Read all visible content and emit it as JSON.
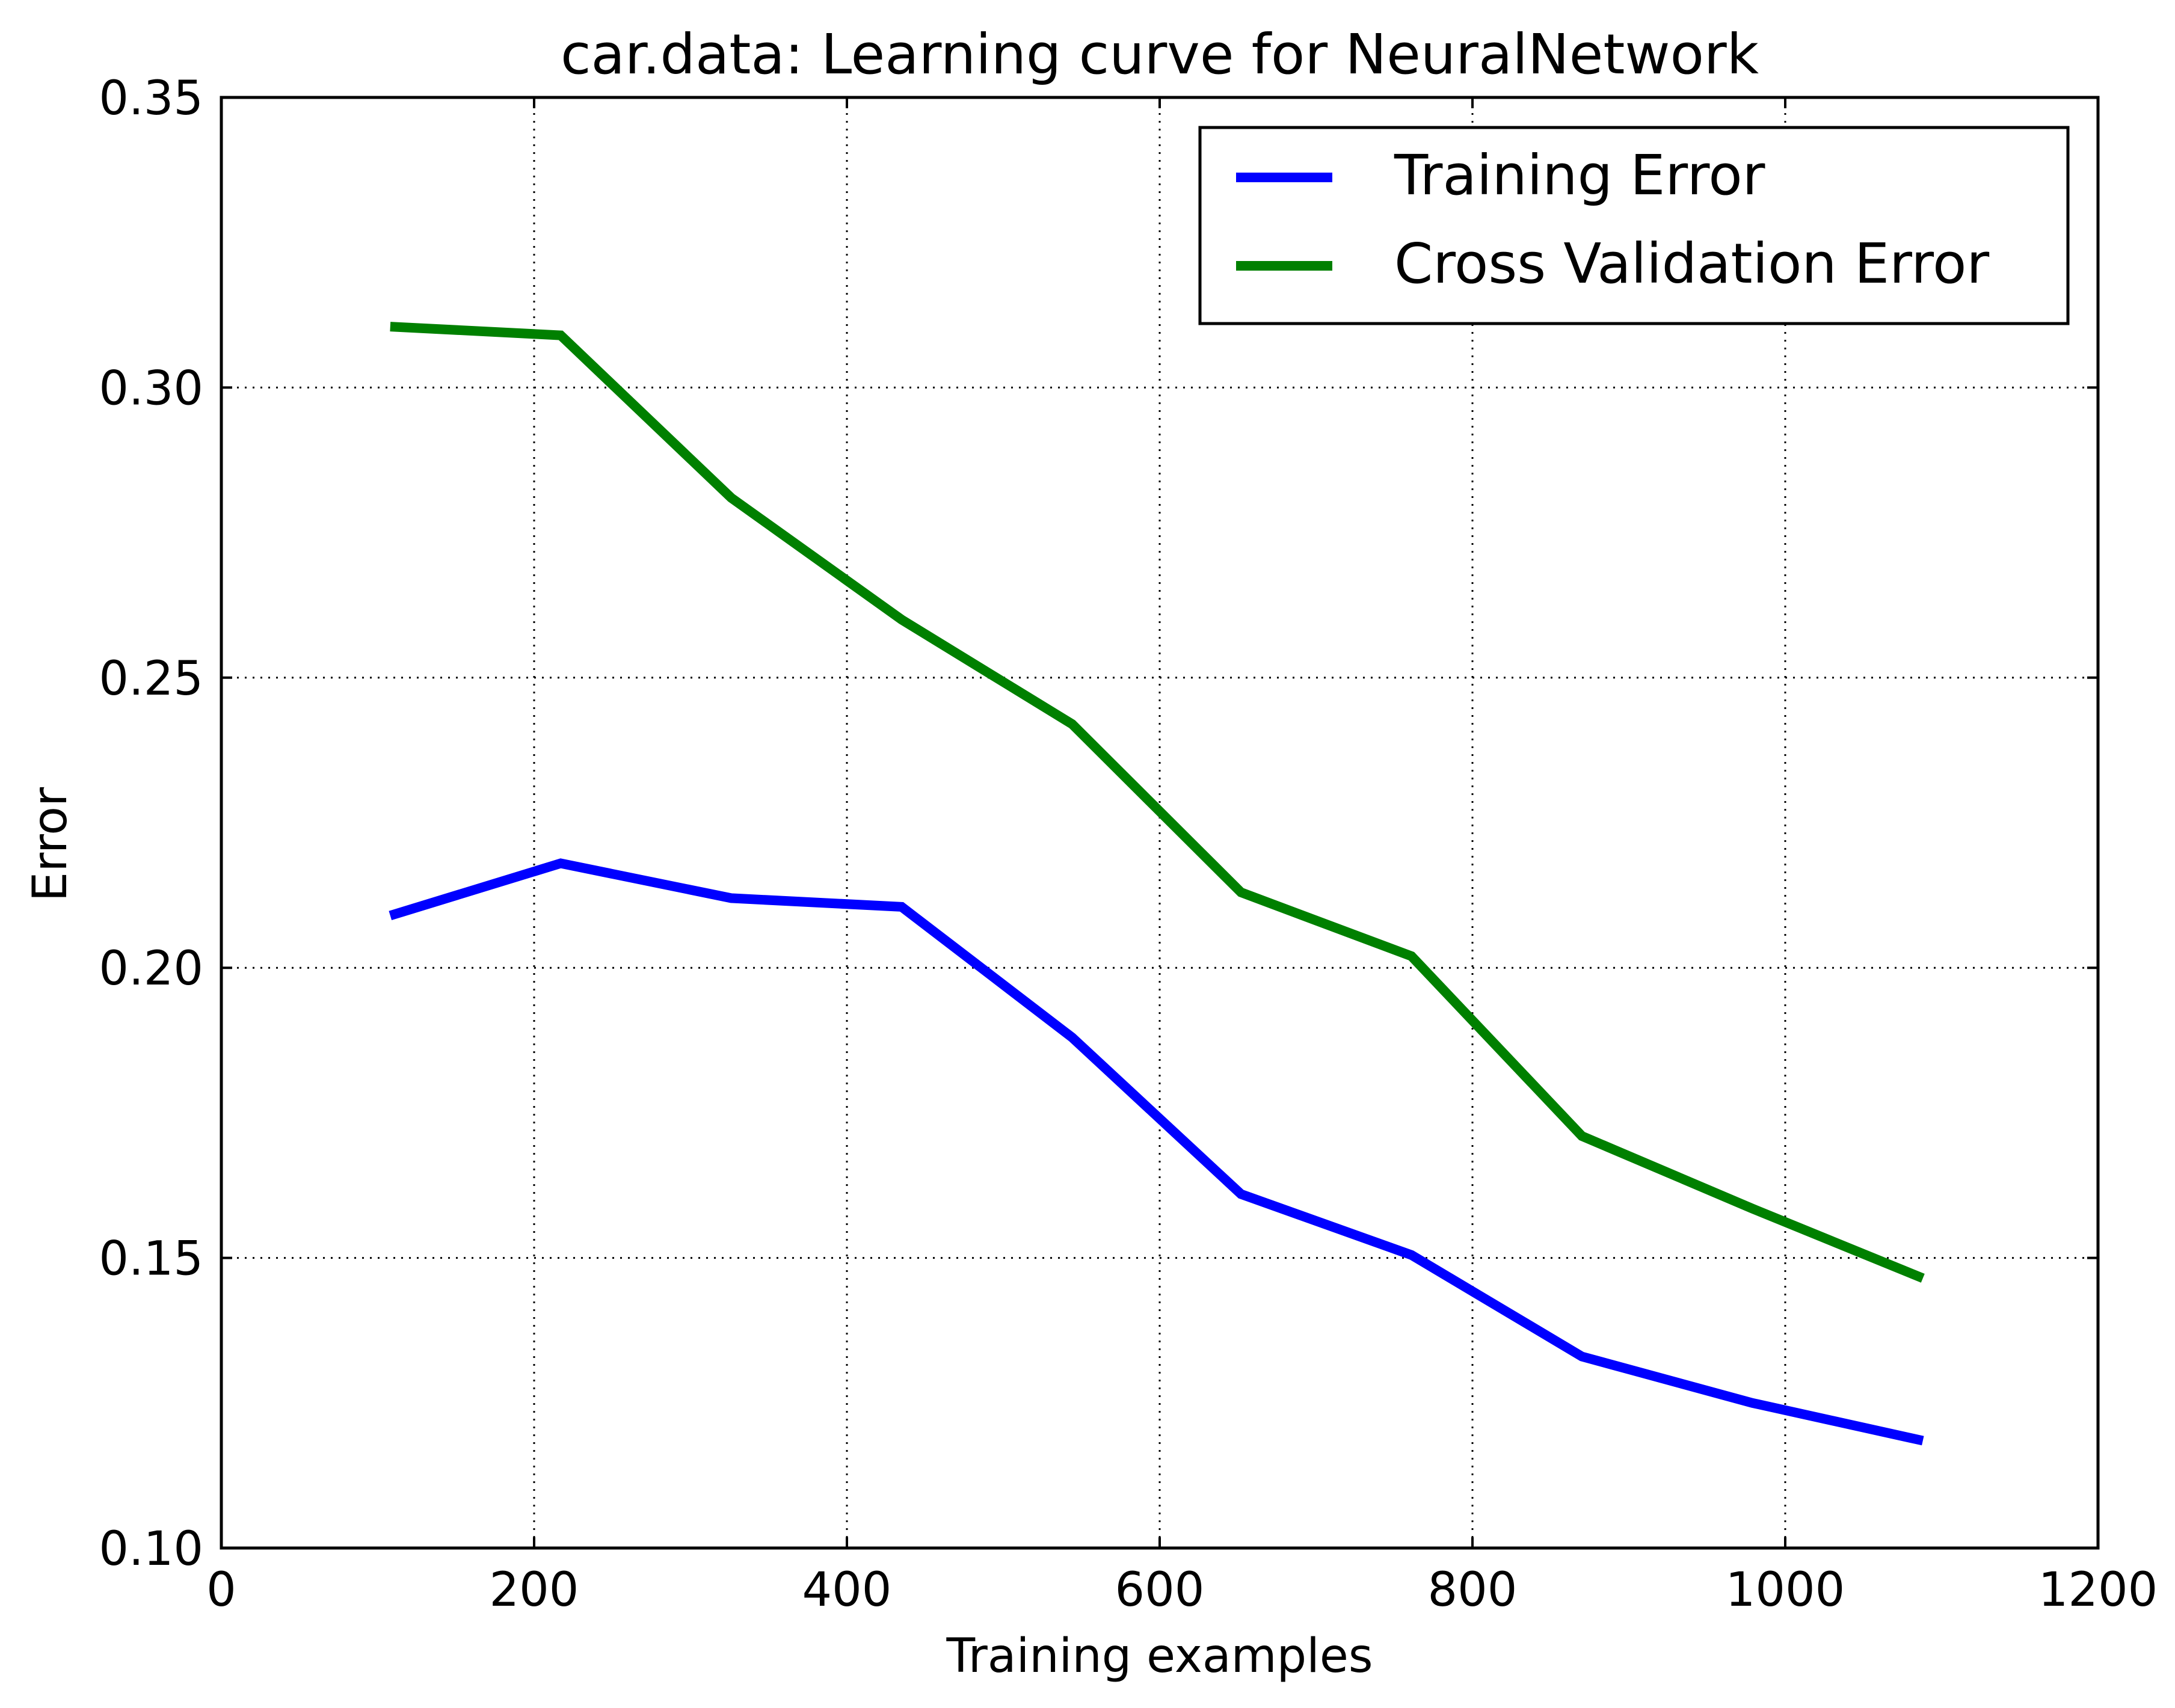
{
  "chart_data": {
    "type": "line",
    "title": "car.data: Learning curve for NeuralNetwork",
    "xlabel": "Training examples",
    "ylabel": "Error",
    "xlim": [
      0,
      1200
    ],
    "ylim": [
      0.1,
      0.35
    ],
    "xticks": [
      0,
      200,
      400,
      600,
      800,
      1000,
      1200
    ],
    "xtick_labels": [
      "0",
      "200",
      "400",
      "600",
      "800",
      "1000",
      "1200"
    ],
    "yticks": [
      0.1,
      0.15,
      0.2,
      0.25,
      0.3,
      0.35
    ],
    "ytick_labels": [
      "0.10",
      "0.15",
      "0.20",
      "0.25",
      "0.30",
      "0.35"
    ],
    "grid": true,
    "legend_position": "top-right",
    "x": [
      108,
      217,
      326,
      435,
      544,
      652,
      761,
      870,
      979,
      1088
    ],
    "series": [
      {
        "name": "Training Error",
        "color": "#0000ff",
        "values": [
          0.209,
          0.218,
          0.212,
          0.2105,
          0.188,
          0.161,
          0.1505,
          0.133,
          0.125,
          0.1185
        ]
      },
      {
        "name": "Cross Validation Error",
        "color": "#008000",
        "values": [
          0.3105,
          0.309,
          0.281,
          0.26,
          0.242,
          0.213,
          0.202,
          0.171,
          0.1585,
          0.1465
        ]
      }
    ]
  }
}
